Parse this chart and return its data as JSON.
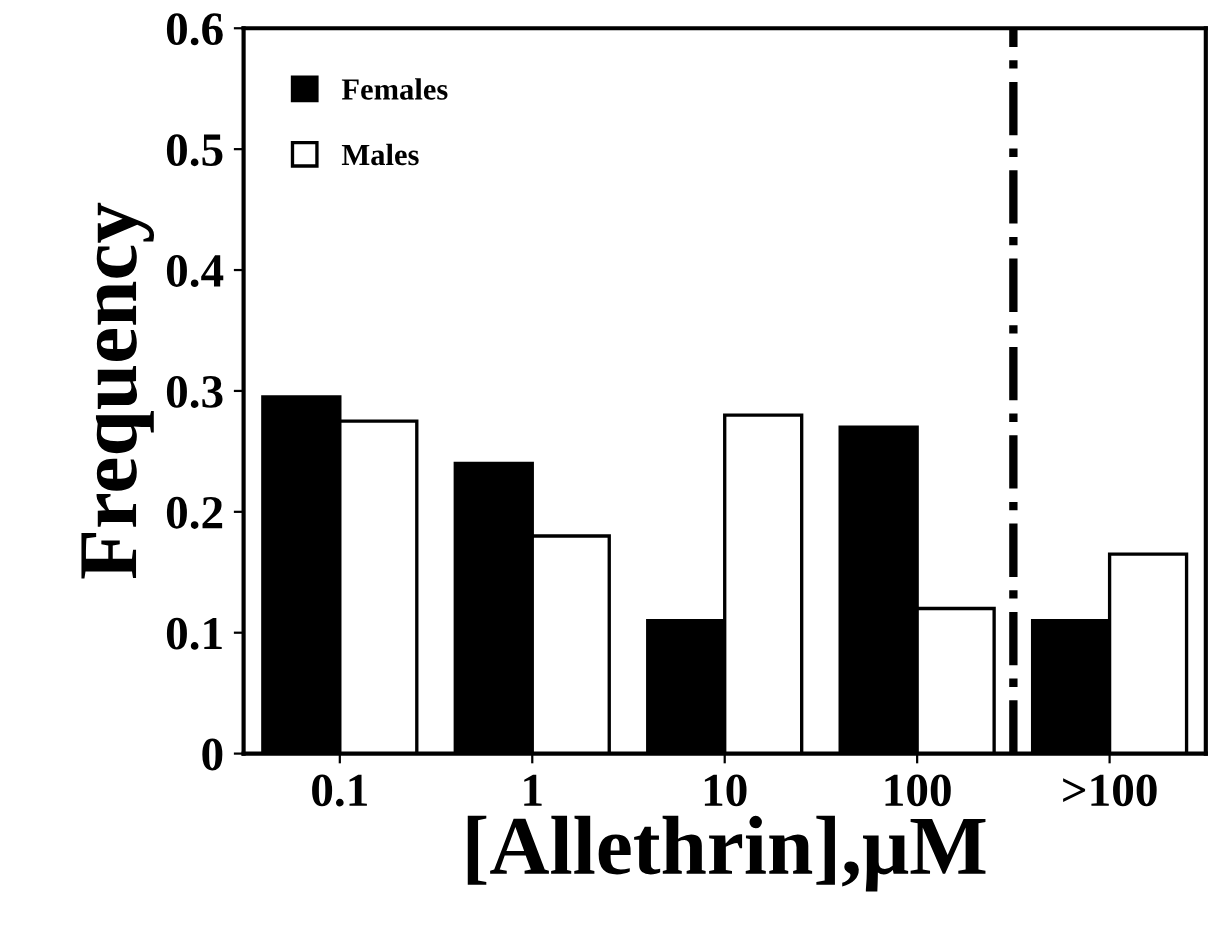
{
  "chart_data": {
    "type": "bar",
    "xlabel": "[Allethrin],μM",
    "ylabel": "Frequency",
    "categories": [
      "0.1",
      "1",
      "10",
      "100",
      ">100"
    ],
    "series": [
      {
        "name": "Females",
        "color": "#000000",
        "values": [
          0.295,
          0.24,
          0.11,
          0.27,
          0.11
        ]
      },
      {
        "name": "Males",
        "color": "#ffffff",
        "values": [
          0.275,
          0.18,
          0.28,
          0.12,
          0.165
        ]
      }
    ],
    "ylim": [
      0,
      0.6
    ],
    "yticks": [
      0,
      0.1,
      0.2,
      0.3,
      0.4,
      0.5,
      0.6
    ],
    "grid": false,
    "legend": "top left"
  }
}
